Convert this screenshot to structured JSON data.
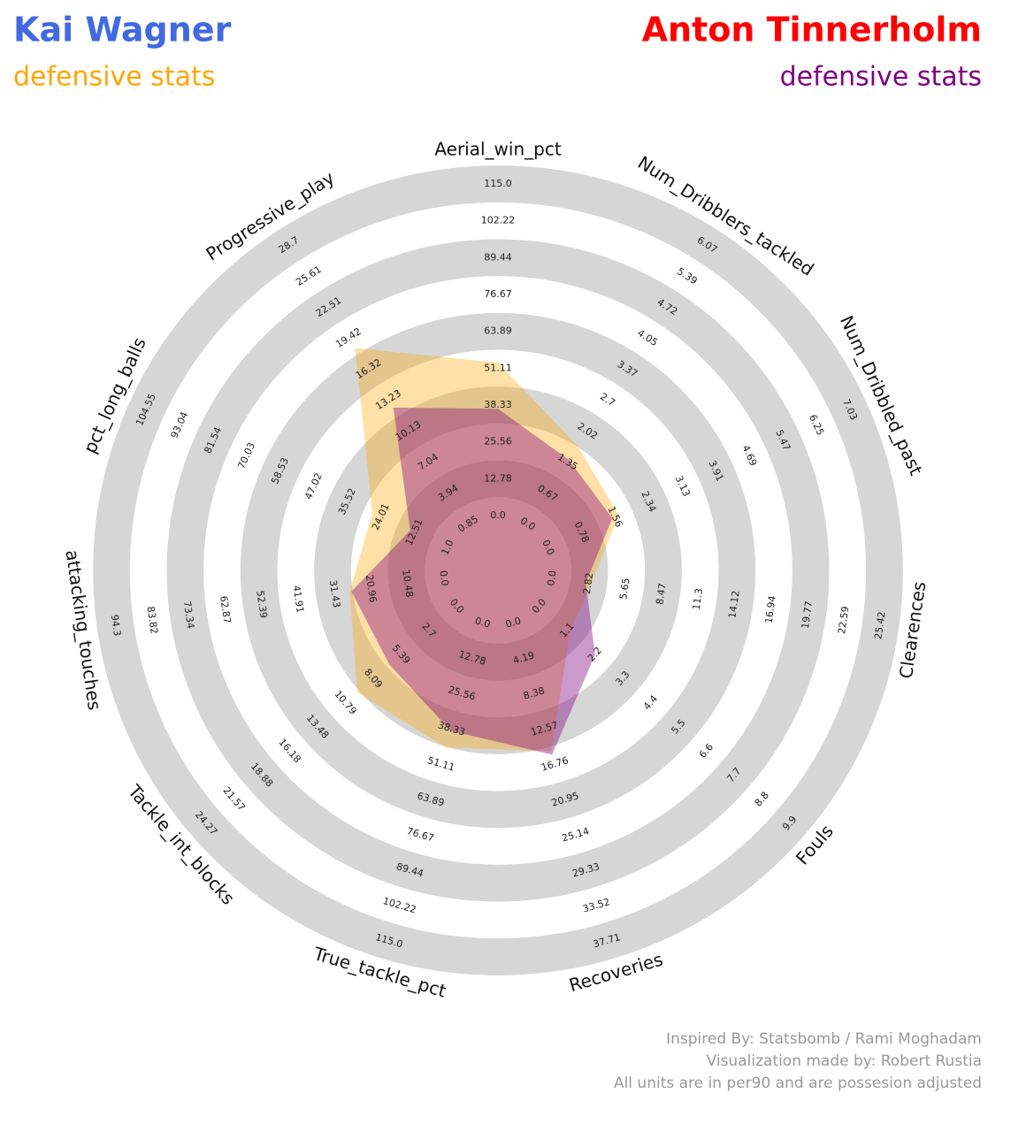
{
  "chart_data": {
    "type": "radar",
    "series": [
      {
        "name": "Kai Wagner",
        "name_color": "#4169e1",
        "subtitle": "defensive stats",
        "color": "#ffa500",
        "values": [
          53,
          1.7,
          1.65,
          3.0,
          1.2,
          15.2,
          45,
          9.6,
          27,
          27,
          18.45
        ]
      },
      {
        "name": "Anton Tinnerholm",
        "name_color": "#ff0000",
        "subtitle": "defensive stats",
        "color": "#800080",
        "values": [
          37,
          1.4,
          1.5,
          2.6,
          2.2,
          15.6,
          39,
          6.5,
          26.5,
          14,
          12.5
        ]
      }
    ],
    "axes": [
      {
        "label": "Aerial_win_pct",
        "range": [
          0,
          115
        ],
        "ticks": [
          {
            "value": 0,
            "label": "0.0"
          },
          12.78,
          25.56,
          38.33,
          51.11,
          63.89,
          76.67,
          89.44,
          102.22,
          {
            "value": 115,
            "label": "115.0"
          }
        ]
      },
      {
        "label": "Num_Dribblers_tackled",
        "range": [
          0,
          6.07
        ],
        "ticks": [
          {
            "value": 0,
            "label": "0.0"
          },
          0.67,
          1.35,
          2.02,
          2.7,
          3.37,
          4.05,
          4.72,
          5.39,
          6.07
        ]
      },
      {
        "label": "Num_Dribbled_past",
        "range": [
          0,
          7.03
        ],
        "ticks": [
          {
            "value": 0,
            "label": "0.0"
          },
          0.78,
          1.56,
          2.34,
          3.13,
          3.91,
          4.69,
          5.47,
          6.25,
          7.03
        ]
      },
      {
        "label": "Clearences",
        "range": [
          0,
          25.42
        ],
        "ticks": [
          {
            "value": 0,
            "label": "0.0"
          },
          2.82,
          5.65,
          8.47,
          11.3,
          14.12,
          16.94,
          19.77,
          22.59,
          25.42
        ]
      },
      {
        "label": "Fouls",
        "range": [
          0,
          9.9
        ],
        "ticks": [
          {
            "value": 0,
            "label": "0.0"
          },
          1.1,
          2.2,
          3.3,
          4.4,
          5.5,
          6.6,
          7.7,
          8.8,
          9.9
        ]
      },
      {
        "label": "Recoveries",
        "range": [
          0,
          37.71
        ],
        "ticks": [
          {
            "value": 0,
            "label": "0.0"
          },
          4.19,
          8.38,
          12.57,
          16.76,
          20.95,
          25.14,
          29.33,
          33.52,
          37.71
        ]
      },
      {
        "label": "True_tackle_pct",
        "range": [
          0,
          115
        ],
        "ticks": [
          {
            "value": 0,
            "label": "0.0"
          },
          12.78,
          25.56,
          38.33,
          51.11,
          63.89,
          76.67,
          89.44,
          102.22,
          {
            "value": 115,
            "label": "115.0"
          }
        ]
      },
      {
        "label": "Tackle_int_blocks",
        "range": [
          0,
          24.27
        ],
        "ticks": [
          {
            "value": 0,
            "label": "0.0"
          },
          2.7,
          5.39,
          8.09,
          10.79,
          13.48,
          16.18,
          18.88,
          21.57,
          24.27
        ]
      },
      {
        "label": "attacking_touches",
        "range": [
          0,
          94.3
        ],
        "ticks": [
          {
            "value": 0,
            "label": "0.0"
          },
          10.48,
          20.96,
          31.43,
          41.91,
          52.39,
          62.87,
          73.34,
          83.82,
          94.3
        ]
      },
      {
        "label": "pct_long_balls",
        "range": [
          1,
          104.55
        ],
        "ticks": [
          {
            "value": 1,
            "label": "1.0"
          },
          12.51,
          24.01,
          35.52,
          47.02,
          58.53,
          70.03,
          81.54,
          93.04,
          104.55
        ]
      },
      {
        "label": "Progressive_play",
        "range": [
          0.85,
          28.7
        ],
        "ticks": [
          0.85,
          3.94,
          7.04,
          10.13,
          13.23,
          16.32,
          19.42,
          22.51,
          25.61,
          28.7
        ]
      }
    ],
    "footer": [
      "Inspired By: Statsbomb / Rami Moghadam",
      "Visualization made by: Robert Rustia",
      "All units are in per90 and are possesion adjusted"
    ]
  }
}
